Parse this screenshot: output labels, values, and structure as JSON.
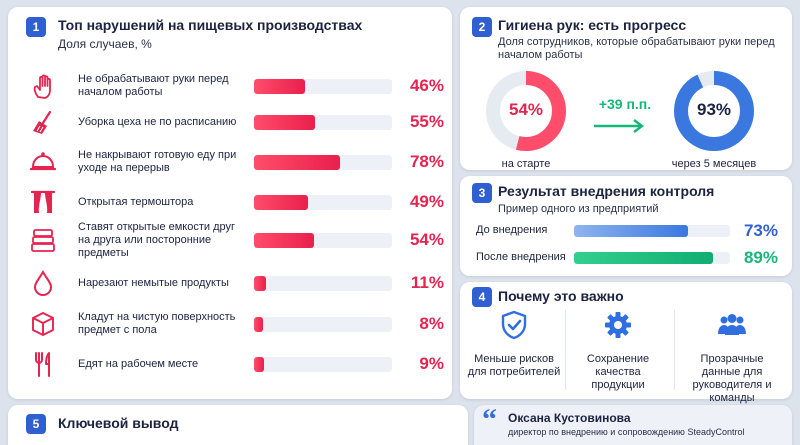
{
  "colors": {
    "accent": "#2f5fd0",
    "bad": "#e52550",
    "blue": "#3a78e0",
    "green": "#16b87a"
  },
  "violations": {
    "number": "1",
    "title": "Топ нарушений на пищевых производствах",
    "subtitle": "Доля случаев, %",
    "items": [
      {
        "icon": "hand-icon",
        "label": "Не обрабатывают руки перед началом работы",
        "value": 46,
        "pct": "46%"
      },
      {
        "icon": "broom-icon",
        "label": "Уборка цеха не по расписанию",
        "value": 55,
        "pct": "55%"
      },
      {
        "icon": "cloche-icon",
        "label": "Не накрывают готовую еду при уходе на перерыв",
        "value": 78,
        "pct": "78%"
      },
      {
        "icon": "curtain-icon",
        "label": "Открытая термоштора",
        "value": 49,
        "pct": "49%"
      },
      {
        "icon": "containers-icon",
        "label": "Ставят открытые емкости друг на друга или посторонние предметы",
        "value": 54,
        "pct": "54%"
      },
      {
        "icon": "drop-icon",
        "label": "Нарезают немытые продукты",
        "value": 11,
        "pct": "11%"
      },
      {
        "icon": "box-icon",
        "label": "Кладут на чистую поверхность предмет с пола",
        "value": 8,
        "pct": "8%"
      },
      {
        "icon": "cutlery-icon",
        "label": "Едят на рабочем месте",
        "value": 9,
        "pct": "9%"
      }
    ]
  },
  "hygiene": {
    "number": "2",
    "title": "Гигиена рук: есть прогресс",
    "subtitle": "Доля сотрудников, которые обрабатывают руки перед началом работы",
    "start": {
      "value": 54,
      "label": "54%",
      "caption": "на старте"
    },
    "end": {
      "value": 93,
      "label": "93%",
      "caption": "через 5 месяцев"
    },
    "delta": "+39 п.п."
  },
  "control": {
    "number": "3",
    "title": "Результат внедрения контроля",
    "subtitle": "Пример одного из предприятий",
    "before": {
      "label": "До внедрения",
      "value": 73,
      "pct": "73%"
    },
    "after": {
      "label": "После внедрения",
      "value": 89,
      "pct": "89%"
    }
  },
  "why": {
    "number": "4",
    "title": "Почему это важно",
    "items": [
      {
        "icon": "shield-check-icon",
        "text": "Меньше рисков для потребителей"
      },
      {
        "icon": "gear-icon",
        "text": "Сохранение качества продукции"
      },
      {
        "icon": "people-icon",
        "text": "Прозрачные данные для руководителя и команды"
      }
    ]
  },
  "conclusion": {
    "number": "5",
    "title": "Ключевой вывод"
  },
  "quote": {
    "mark": "“",
    "name": "Оксана Кустовинова",
    "role": "директор по внедрению и сопровождению SteadyControl"
  }
}
